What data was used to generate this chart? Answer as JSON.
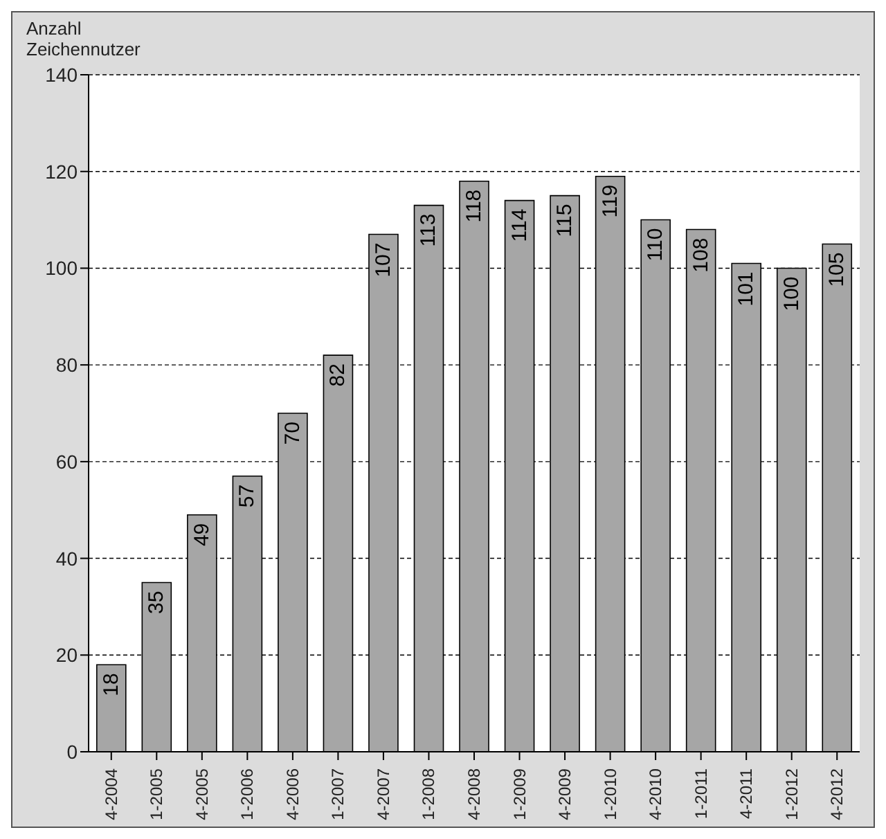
{
  "chart_data": {
    "type": "bar",
    "ylabel": "Anzahl Zeichennutzer",
    "categories": [
      "4-2004",
      "1-2005",
      "4-2005",
      "1-2006",
      "4-2006",
      "1-2007",
      "4-2007",
      "1-2008",
      "4-2008",
      "1-2009",
      "4-2009",
      "1-2010",
      "4-2010",
      "1-2011",
      "4-2011",
      "1-2012",
      "4-2012"
    ],
    "values": [
      18,
      35,
      49,
      57,
      70,
      82,
      107,
      113,
      118,
      114,
      115,
      119,
      110,
      108,
      101,
      100,
      105
    ],
    "color": "#a6a6a6",
    "ylim": [
      0,
      140
    ],
    "yticks": [
      0,
      20,
      40,
      60,
      80,
      100,
      120,
      140
    ],
    "grid": "y",
    "data_labels": true
  }
}
